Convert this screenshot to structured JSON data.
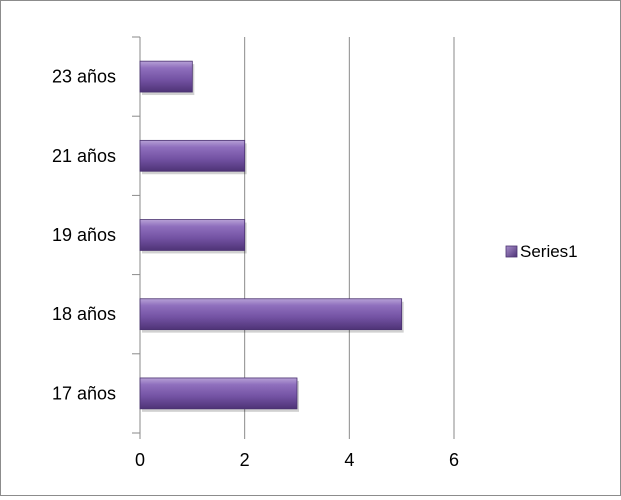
{
  "chart_data": {
    "type": "bar",
    "orientation": "horizontal",
    "categories": [
      "17 años",
      "18 años",
      "19 años",
      "21 años",
      "23 años"
    ],
    "series": [
      {
        "name": "Series1",
        "values": [
          3,
          5,
          2,
          2,
          1
        ],
        "color": "#7b5aa6"
      }
    ],
    "xlim": [
      0,
      6
    ],
    "x_ticks": [
      "0",
      "2",
      "4",
      "6"
    ],
    "grid": true,
    "legend_position": "right"
  }
}
